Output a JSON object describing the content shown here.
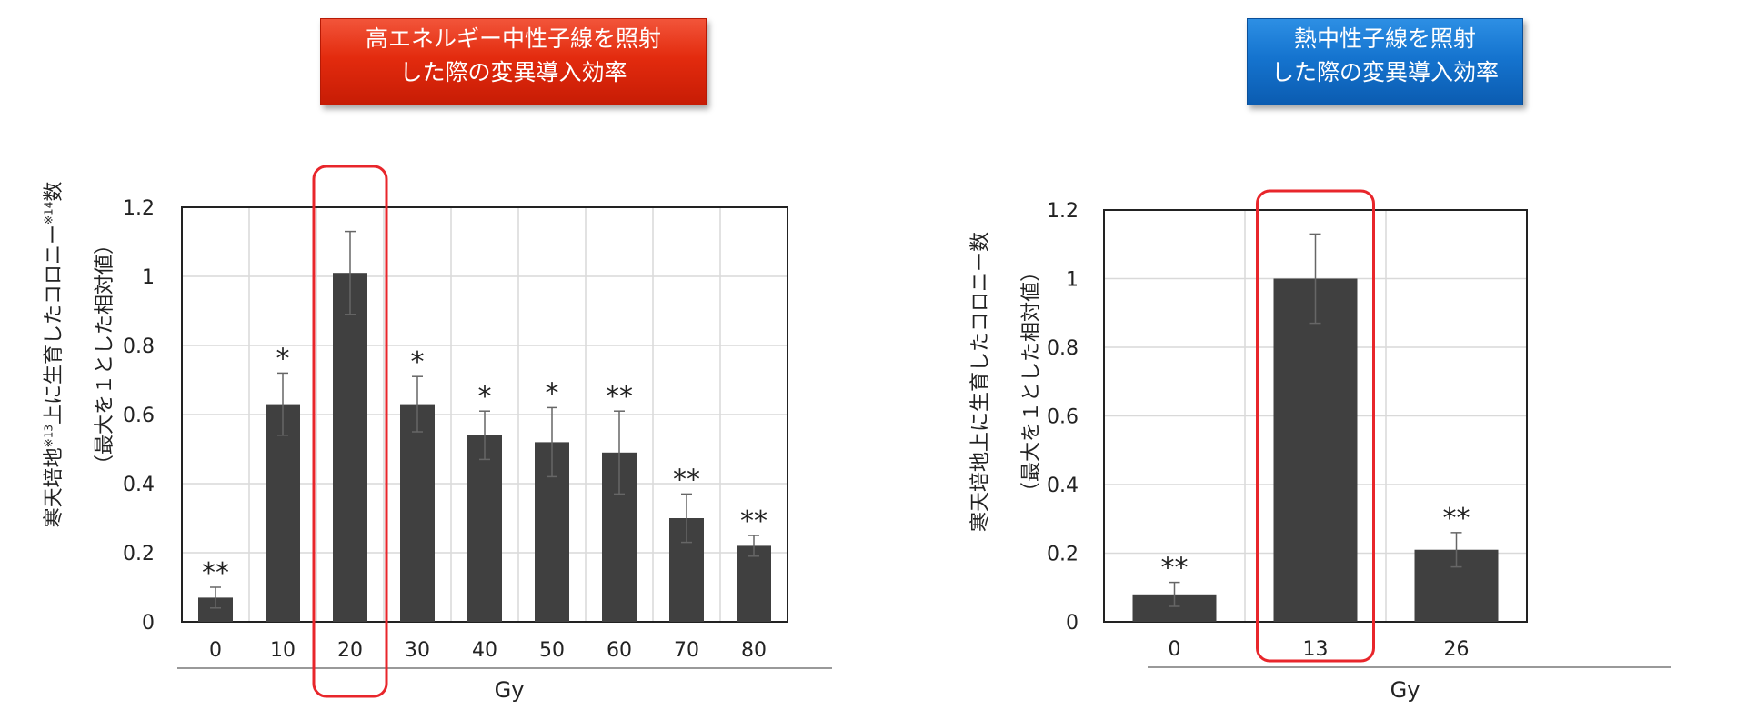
{
  "banners": {
    "left": "高エネルギー中性子線を照射\nした際の変異導入効率",
    "right": "熱中性子線を照射\nした際の変異導入効率",
    "left_color": "#e32b0e",
    "right_color": "#1574cf"
  },
  "chart_data": [
    {
      "type": "bar",
      "categories": [
        "0",
        "10",
        "20",
        "30",
        "40",
        "50",
        "60",
        "70",
        "80"
      ],
      "values": [
        0.07,
        0.63,
        1.01,
        0.63,
        0.54,
        0.52,
        0.49,
        0.3,
        0.22
      ],
      "error": [
        0.03,
        0.09,
        0.12,
        0.08,
        0.07,
        0.1,
        0.12,
        0.07,
        0.03
      ],
      "significance": [
        "**",
        "*",
        "",
        "*",
        "*",
        "*",
        "**",
        "**",
        "**"
      ],
      "highlight": [
        "20"
      ],
      "xlabel": "Gy",
      "ylabel_line1": "寒天培地",
      "ylabel_sup1": "※13",
      "ylabel_line1b": "上に生育したコロニー",
      "ylabel_sup2": "※14",
      "ylabel_line1c": "数",
      "ylabel_line2": "（最大を１とした相対値）",
      "yticks": [
        "0",
        "0.2",
        "0.4",
        "0.6",
        "0.8",
        "1",
        "1.2"
      ],
      "ylim": [
        0,
        1.2
      ],
      "grid": true,
      "bar_color": "#404040",
      "highlight_color": "#e8262b"
    },
    {
      "type": "bar",
      "categories": [
        "0",
        "13",
        "26"
      ],
      "values": [
        0.08,
        1.0,
        0.21
      ],
      "error": [
        0.035,
        0.13,
        0.05
      ],
      "significance": [
        "**",
        "",
        "**"
      ],
      "highlight": [
        "13"
      ],
      "xlabel": "Gy",
      "ylabel_line1": "寒天培地上に生育したコロニー数",
      "ylabel_line2": "（最大を１とした相対値）",
      "yticks": [
        "0",
        "0.2",
        "0.4",
        "0.6",
        "0.8",
        "1",
        "1.2"
      ],
      "ylim": [
        0,
        1.2
      ],
      "grid": true,
      "bar_color": "#404040",
      "highlight_color": "#e8262b"
    }
  ]
}
